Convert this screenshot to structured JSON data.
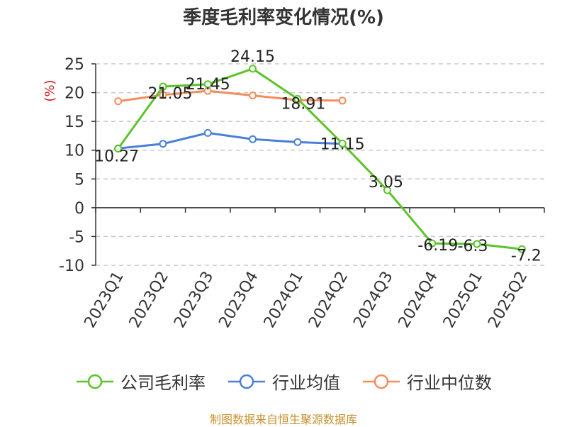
{
  "chart_data": {
    "type": "line",
    "title": "季度毛利率变化情况(%)",
    "ylabel": "(%)",
    "categories": [
      "2023Q1",
      "2023Q2",
      "2023Q3",
      "2023Q4",
      "2024Q1",
      "2024Q2",
      "2024Q3",
      "2024Q4",
      "2025Q1",
      "2025Q2"
    ],
    "ylim": [
      -10,
      25
    ],
    "yticks": [
      -10,
      -5,
      0,
      5,
      10,
      15,
      20,
      25
    ],
    "grid": true,
    "legend_position": "bottom",
    "series": [
      {
        "name": "公司毛利率",
        "color": "#5cc42b",
        "values": [
          10.27,
          21.05,
          21.45,
          24.15,
          18.91,
          11.15,
          3.05,
          -6.19,
          -6.3,
          -7.2
        ],
        "labels": [
          "10.27",
          "21.05",
          "21.45",
          "24.15",
          "18.91",
          "11.15",
          "3.05",
          "-6.19",
          "-6.3",
          "-7.2"
        ]
      },
      {
        "name": "行业均值",
        "color": "#4a7fdc",
        "values": [
          10.3,
          11.1,
          13.0,
          11.9,
          11.4,
          11.1,
          null,
          null,
          null,
          null
        ]
      },
      {
        "name": "行业中位数",
        "color": "#f48c5b",
        "values": [
          18.5,
          19.6,
          20.3,
          19.5,
          18.7,
          18.6,
          null,
          null,
          null,
          null
        ]
      }
    ]
  },
  "footer": "制图数据来自恒生聚源数据库"
}
